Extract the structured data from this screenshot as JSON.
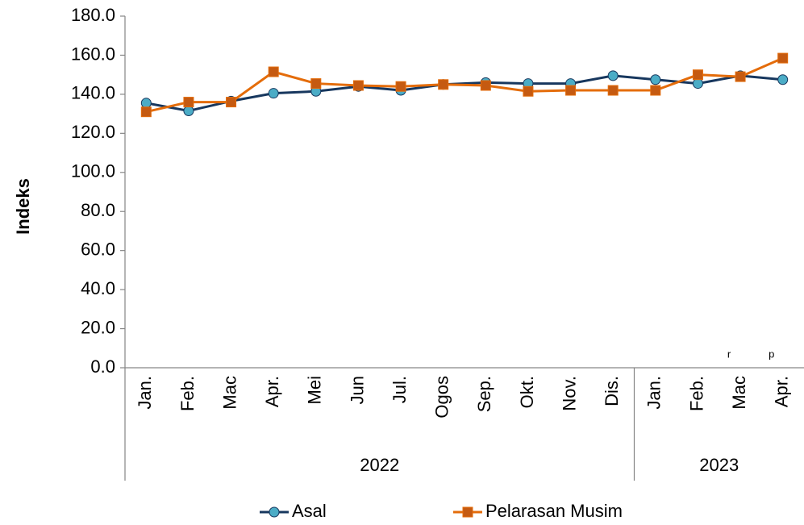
{
  "chart_data": {
    "type": "line",
    "y_label": "Indeks",
    "categories": [
      "Jan.",
      "Feb.",
      "Mac",
      "Apr.",
      "Mei",
      "Jun",
      "Jul.",
      "Ogos",
      "Sep.",
      "Okt.",
      "Nov.",
      "Dis.",
      "Jan.",
      "Feb.",
      "Mac",
      "Apr."
    ],
    "category_notes": [
      null,
      null,
      null,
      null,
      null,
      null,
      null,
      null,
      null,
      null,
      null,
      null,
      null,
      null,
      "r",
      "p"
    ],
    "groups": [
      {
        "label": "2022",
        "count": 12
      },
      {
        "label": "2023",
        "count": 4
      }
    ],
    "series": [
      {
        "name": "Asal",
        "color": "#17375e",
        "marker_color": "#4bacc6",
        "marker": "circle",
        "values": [
          135.5,
          131.5,
          136.5,
          140.5,
          141.5,
          144,
          142,
          145,
          146,
          145.5,
          145.5,
          149.5,
          147.5,
          145.5,
          149.5,
          147.5
        ]
      },
      {
        "name": "Pelarasan Musim",
        "color": "#e46c0a",
        "marker_color": "#c55a11",
        "marker": "square",
        "values": [
          131,
          136,
          136,
          151.5,
          145.5,
          144.5,
          144,
          145,
          144.5,
          141.5,
          142,
          142,
          142,
          150,
          149,
          158.5
        ]
      }
    ],
    "ylim": [
      0,
      180
    ],
    "yticks": [
      {
        "value": 0,
        "label": "0.0"
      },
      {
        "value": 20,
        "label": "20.0"
      },
      {
        "value": 40,
        "label": "40.0"
      },
      {
        "value": 60,
        "label": "60.0"
      },
      {
        "value": 80,
        "label": "80.0"
      },
      {
        "value": 100,
        "label": "100.0"
      },
      {
        "value": 120,
        "label": "120.0"
      },
      {
        "value": 140,
        "label": "140.0"
      },
      {
        "value": 160,
        "label": "160.0"
      },
      {
        "value": 180,
        "label": "180.0"
      }
    ],
    "grid": false
  }
}
